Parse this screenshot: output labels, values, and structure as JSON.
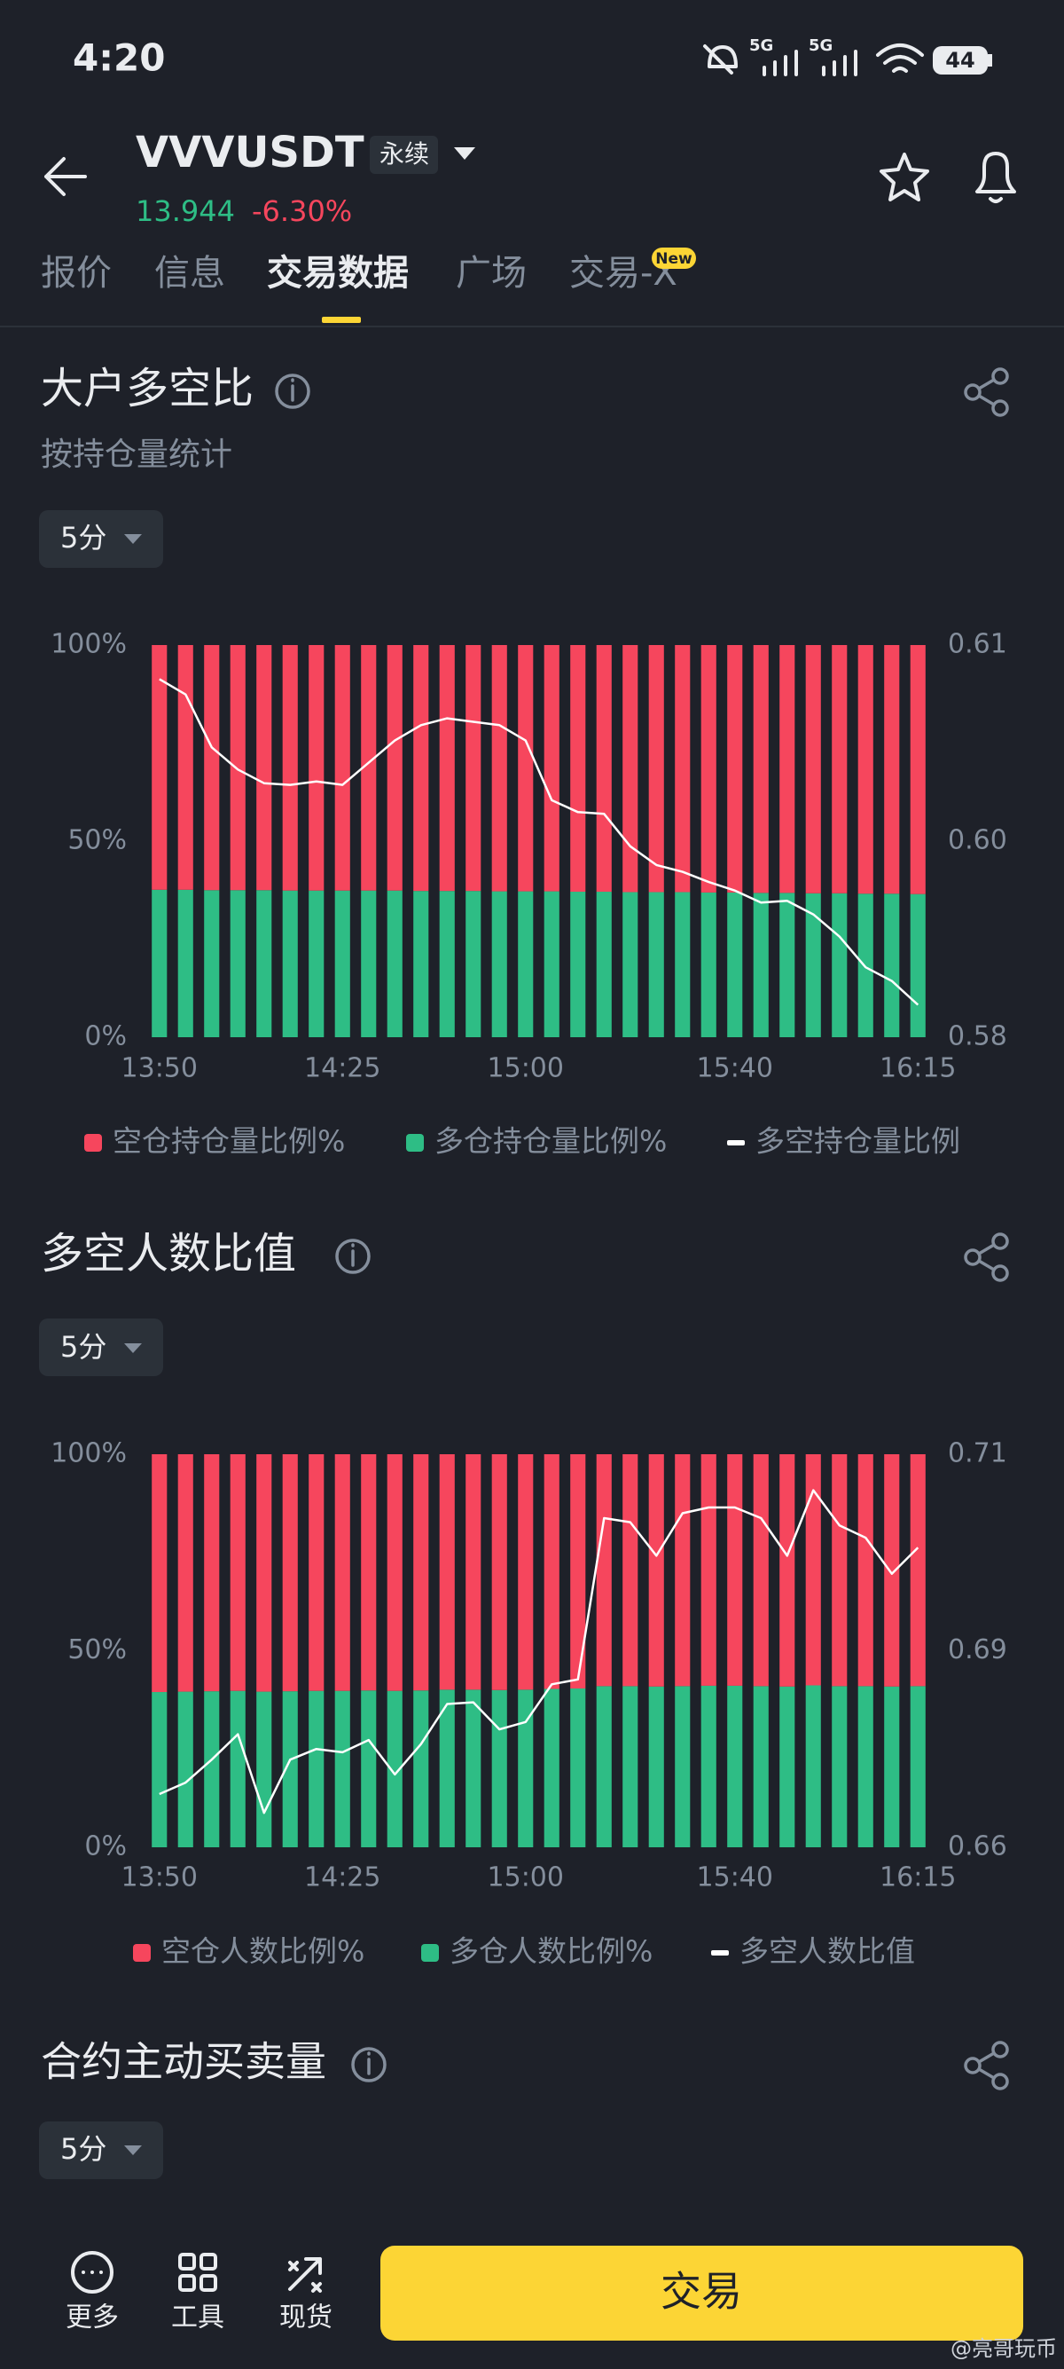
{
  "status_bar": {
    "time": "4:20",
    "network": [
      "5G",
      "5G"
    ],
    "battery": "44"
  },
  "header": {
    "symbol": "VVVUSDT",
    "contract": "永续",
    "price": "13.944",
    "change": "-6.30%"
  },
  "tabs": [
    "报价",
    "信息",
    "交易数据",
    "广场",
    "交易-X"
  ],
  "new_badge": "New",
  "sections": [
    {
      "title": "大户多空比",
      "subtitle": "按持仓量统计",
      "interval": "5分"
    },
    {
      "title": "多空人数比值",
      "interval": "5分"
    },
    {
      "title": "合约主动买卖量",
      "interval": "5分"
    }
  ],
  "chart_data": [
    {
      "type": "bar",
      "stacked": true,
      "categories": [
        "13:50",
        null,
        null,
        null,
        null,
        null,
        null,
        "14:25",
        null,
        null,
        null,
        null,
        null,
        null,
        "15:00",
        null,
        null,
        null,
        null,
        null,
        null,
        null,
        "15:40",
        null,
        null,
        null,
        null,
        null,
        null,
        "16:15"
      ],
      "ylim": [
        0,
        100
      ],
      "yticks": [
        {
          "value": 0,
          "label": "0%"
        },
        {
          "value": 50,
          "label": "50%"
        },
        {
          "value": 100,
          "label": "100%"
        }
      ],
      "y2lim": [
        0.584,
        0.607
      ],
      "y2ticks": [
        {
          "value": 0.584,
          "label": "0.58"
        },
        {
          "value": 0.5955,
          "label": "0.60"
        },
        {
          "value": 0.607,
          "label": "0.61"
        }
      ],
      "series": [
        {
          "name": "空仓持仓量比例%",
          "color": "#f6465d",
          "values": [
            62.4,
            62.4,
            62.5,
            62.5,
            62.5,
            62.6,
            62.6,
            62.6,
            62.6,
            62.6,
            62.7,
            62.7,
            62.7,
            62.8,
            62.8,
            62.8,
            62.9,
            62.9,
            63.0,
            63.0,
            63.0,
            63.1,
            63.1,
            63.2,
            63.2,
            63.3,
            63.3,
            63.4,
            63.4,
            63.5
          ]
        },
        {
          "name": "多仓持仓量比例%",
          "color": "#2ebd85",
          "values": [
            37.6,
            37.6,
            37.5,
            37.5,
            37.5,
            37.4,
            37.4,
            37.4,
            37.4,
            37.4,
            37.3,
            37.3,
            37.3,
            37.2,
            37.2,
            37.2,
            37.1,
            37.1,
            37.0,
            37.0,
            37.0,
            36.9,
            36.9,
            36.8,
            36.8,
            36.7,
            36.7,
            36.6,
            36.6,
            36.5
          ]
        },
        {
          "name": "多空持仓量比例",
          "color": "#ffffff",
          "type": "line",
          "axis": "y2",
          "values": [
            0.605,
            0.6041,
            0.601,
            0.5997,
            0.5989,
            0.5988,
            0.599,
            0.5988,
            0.6001,
            0.6014,
            0.6023,
            0.6027,
            0.6025,
            0.6023,
            0.6014,
            0.5979,
            0.5972,
            0.5971,
            0.5952,
            0.5941,
            0.5937,
            0.5931,
            0.5926,
            0.5919,
            0.592,
            0.5912,
            0.5899,
            0.5881,
            0.5873,
            0.5859
          ]
        }
      ]
    },
    {
      "type": "bar",
      "stacked": true,
      "categories": [
        "13:50",
        null,
        null,
        null,
        null,
        null,
        null,
        "14:25",
        null,
        null,
        null,
        null,
        null,
        null,
        "15:00",
        null,
        null,
        null,
        null,
        null,
        null,
        null,
        "15:40",
        null,
        null,
        null,
        null,
        null,
        null,
        "16:15"
      ],
      "ylim": [
        0,
        100
      ],
      "yticks": [
        {
          "value": 0,
          "label": "0%"
        },
        {
          "value": 50,
          "label": "50%"
        },
        {
          "value": 100,
          "label": "100%"
        }
      ],
      "y2lim": [
        0.663,
        0.711
      ],
      "y2ticks": [
        {
          "value": 0.663,
          "label": "0.66"
        },
        {
          "value": 0.687,
          "label": "0.69"
        },
        {
          "value": 0.711,
          "label": "0.71"
        }
      ],
      "series": [
        {
          "name": "空仓人数比例%",
          "color": "#f6465d",
          "values": [
            60.5,
            60.4,
            60.3,
            60.2,
            60.4,
            60.3,
            60.2,
            60.2,
            60.1,
            60.2,
            60.1,
            59.9,
            59.9,
            60.0,
            59.9,
            59.7,
            59.6,
            59.0,
            59.0,
            59.1,
            59.0,
            58.9,
            58.9,
            59.0,
            59.1,
            58.8,
            59.0,
            59.0,
            59.1,
            59.0
          ]
        },
        {
          "name": "多仓人数比例%",
          "color": "#2ebd85",
          "values": [
            39.5,
            39.6,
            39.7,
            39.8,
            39.6,
            39.7,
            39.8,
            39.8,
            39.9,
            39.8,
            39.9,
            40.1,
            40.1,
            40.0,
            40.1,
            40.3,
            40.4,
            41.0,
            41.0,
            40.9,
            41.0,
            41.1,
            41.1,
            41.0,
            40.9,
            41.2,
            41.0,
            41.0,
            40.9,
            41.0
          ]
        },
        {
          "name": "多空人数比值",
          "color": "#ffffff",
          "type": "line",
          "axis": "y2",
          "values": [
            0.6695,
            0.6709,
            0.6737,
            0.6768,
            0.6672,
            0.6737,
            0.675,
            0.6746,
            0.6761,
            0.6719,
            0.6756,
            0.6805,
            0.6807,
            0.6774,
            0.6783,
            0.6829,
            0.6835,
            0.7032,
            0.7027,
            0.6986,
            0.7038,
            0.7045,
            0.7045,
            0.7032,
            0.6986,
            0.7066,
            0.7023,
            0.7008,
            0.6964,
            0.6996
          ]
        }
      ]
    }
  ],
  "bottom_nav": {
    "items": [
      "更多",
      "工具",
      "现货"
    ],
    "trade_button": "交易"
  },
  "watermark": "@亮哥玩币"
}
